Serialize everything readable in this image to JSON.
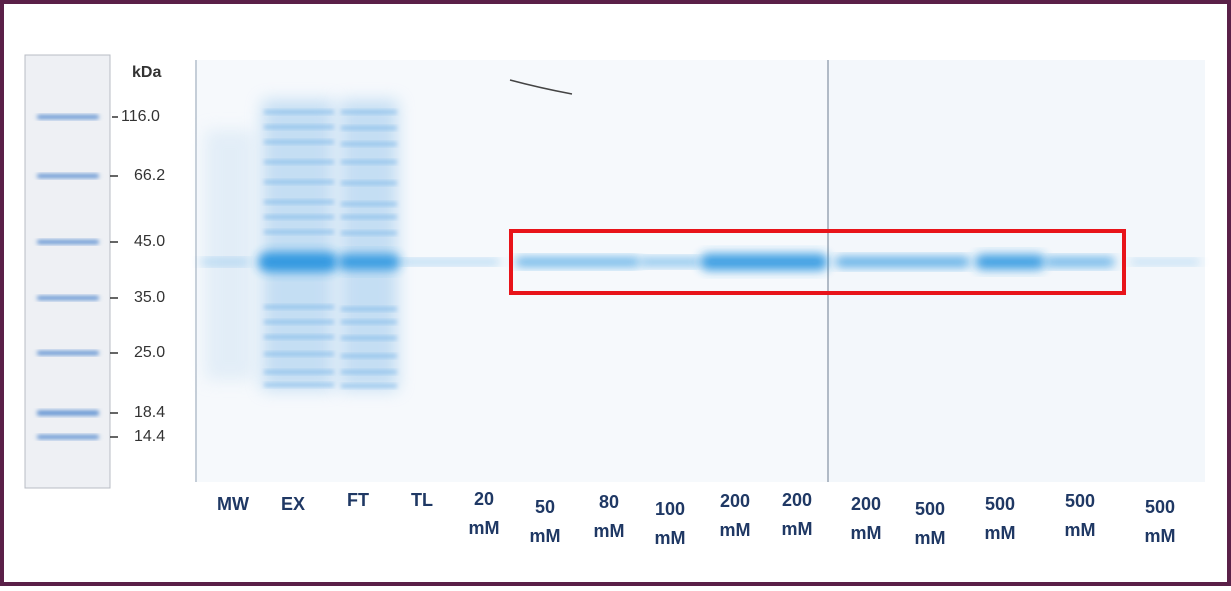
{
  "marker": {
    "unit": "kDa",
    "labels": [
      "116.0",
      "66.2",
      "45.0",
      "35.0",
      "25.0",
      "18.4",
      "14.4"
    ]
  },
  "lanes": [
    [
      "MW"
    ],
    [
      "EX"
    ],
    [
      "FT"
    ],
    [
      "TL"
    ],
    [
      "20",
      "mM"
    ],
    [
      "50",
      "mM"
    ],
    [
      "80",
      "mM"
    ],
    [
      "100",
      "mM"
    ],
    [
      "200",
      "mM"
    ],
    [
      "200",
      "mM"
    ],
    [
      "200",
      "mM"
    ],
    [
      "500",
      "mM"
    ],
    [
      "500",
      "mM"
    ],
    [
      "500",
      "mM"
    ],
    [
      "500",
      "mM"
    ]
  ]
}
